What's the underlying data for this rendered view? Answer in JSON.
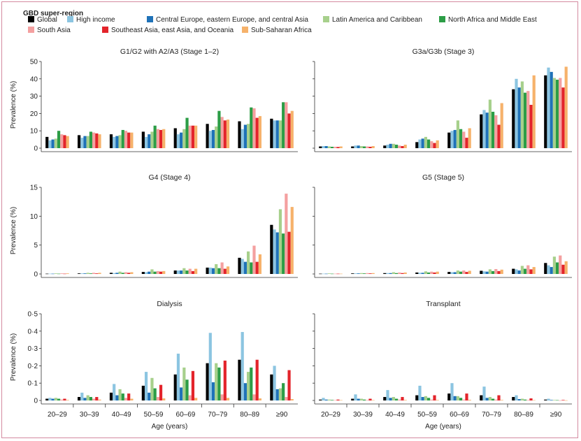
{
  "legend": {
    "title": "GBD super-region",
    "entries": [
      {
        "name": "Global",
        "color": "#000000"
      },
      {
        "name": "High income",
        "color": "#8cc5e1"
      },
      {
        "name": "Central Europe, eastern Europe, and central Asia",
        "color": "#1f72b8"
      },
      {
        "name": "Latin America and Caribbean",
        "color": "#a7d08c"
      },
      {
        "name": "North Africa and Middle East",
        "color": "#2c9d46"
      },
      {
        "name": "South Asia",
        "color": "#f4a0a0"
      },
      {
        "name": "Southeast Asia, east Asia, and Oceania",
        "color": "#e3242b"
      },
      {
        "name": "Sub-Saharan Africa",
        "color": "#f6b26b"
      }
    ]
  },
  "ylabel": "Prevalence (%)",
  "xlabel": "Age (years)",
  "chart_data": [
    {
      "type": "bar",
      "title": "G1/G2 with A2/A3 (Stage 1–2)",
      "categories": [
        "20–29",
        "30–39",
        "40–49",
        "50–59",
        "60–69",
        "70–79",
        "80–89",
        "≥90"
      ],
      "ylim": [
        0,
        50
      ],
      "yticks": [
        0,
        10,
        20,
        30,
        40,
        50
      ],
      "ytick_labels": [
        "0",
        "10",
        "20",
        "30",
        "40",
        "50"
      ],
      "series": [
        {
          "name": "Global",
          "values": [
            6.5,
            7.5,
            8,
            9.5,
            11.5,
            14,
            15.5,
            17
          ]
        },
        {
          "name": "High income",
          "values": [
            4.5,
            6,
            6.5,
            6.5,
            8,
            10,
            11,
            16
          ]
        },
        {
          "name": "Central Europe, eastern Europe, and central Asia",
          "values": [
            5,
            7,
            7,
            8,
            9,
            10.5,
            13.5,
            16
          ]
        },
        {
          "name": "Latin America and Caribbean",
          "values": [
            5.5,
            7,
            7.5,
            9.5,
            11,
            12.5,
            14,
            16
          ]
        },
        {
          "name": "North Africa and Middle East",
          "values": [
            10,
            9.5,
            10.5,
            13,
            17.5,
            21.5,
            23.5,
            26.5
          ]
        },
        {
          "name": "South Asia",
          "values": [
            8,
            9,
            10,
            11,
            13,
            18,
            23,
            26.5
          ]
        },
        {
          "name": "Southeast Asia, east Asia, and Oceania",
          "values": [
            7.5,
            8.5,
            9,
            10.5,
            13,
            16,
            17.5,
            20
          ]
        },
        {
          "name": "Sub-Saharan Africa",
          "values": [
            7,
            8,
            9,
            11,
            13,
            16.5,
            18.5,
            21.5
          ]
        }
      ]
    },
    {
      "type": "bar",
      "title": "G3a/G3b (Stage 3)",
      "categories": [
        "20–29",
        "30–39",
        "40–49",
        "50–59",
        "60–69",
        "70–79",
        "80–89",
        "≥90"
      ],
      "ylim": [
        0,
        50
      ],
      "yticks": [
        0,
        10,
        20,
        30,
        40,
        50
      ],
      "ytick_labels": [
        "0",
        "10",
        "20",
        "30",
        "40",
        "50"
      ],
      "series": [
        {
          "name": "Global",
          "values": [
            1,
            1,
            1.5,
            3.5,
            9,
            19.5,
            34,
            42
          ]
        },
        {
          "name": "High income",
          "values": [
            1.2,
            1.5,
            2,
            5,
            10,
            22,
            40,
            46.5
          ]
        },
        {
          "name": "Central Europe, eastern Europe, and central Asia",
          "values": [
            1.2,
            1.5,
            2.5,
            5.5,
            10.5,
            20.5,
            35,
            44
          ]
        },
        {
          "name": "Latin America and Caribbean",
          "values": [
            1,
            1.2,
            2.5,
            6.5,
            16,
            28,
            38.5,
            40.5
          ]
        },
        {
          "name": "North Africa and Middle East",
          "values": [
            0.8,
            1,
            2,
            5,
            11,
            21,
            32,
            39.5
          ]
        },
        {
          "name": "South Asia",
          "values": [
            0.8,
            1,
            1.5,
            4,
            9.5,
            19,
            33,
            40.5
          ]
        },
        {
          "name": "Southeast Asia, east Asia, and Oceania",
          "values": [
            0.7,
            0.8,
            1.2,
            3,
            6,
            13.5,
            25,
            35
          ]
        },
        {
          "name": "Sub-Saharan Africa",
          "values": [
            1,
            1.2,
            2,
            4.5,
            11.5,
            26,
            42,
            47
          ]
        }
      ]
    },
    {
      "type": "bar",
      "title": "G4 (Stage 4)",
      "categories": [
        "20–29",
        "30–39",
        "40–49",
        "50–59",
        "60–69",
        "70–79",
        "80–89",
        "≥90"
      ],
      "ylim": [
        0,
        15
      ],
      "yticks": [
        0,
        5,
        10,
        15
      ],
      "ytick_labels": [
        "0",
        "5",
        "10",
        "15"
      ],
      "series": [
        {
          "name": "Global",
          "values": [
            0.05,
            0.1,
            0.2,
            0.35,
            0.6,
            1.1,
            2.8,
            8.5
          ]
        },
        {
          "name": "High income",
          "values": [
            0.05,
            0.1,
            0.15,
            0.3,
            0.6,
            1.1,
            2.6,
            7.7
          ]
        },
        {
          "name": "Central Europe, eastern Europe, and central Asia",
          "values": [
            0.05,
            0.1,
            0.2,
            0.4,
            0.6,
            1.0,
            2.1,
            7.2
          ]
        },
        {
          "name": "Latin America and Caribbean",
          "values": [
            0.1,
            0.2,
            0.4,
            0.8,
            1.0,
            1.7,
            3.9,
            11.2
          ]
        },
        {
          "name": "North Africa and Middle East",
          "values": [
            0.05,
            0.1,
            0.2,
            0.4,
            0.6,
            1.0,
            2.0,
            7.0
          ]
        },
        {
          "name": "South Asia",
          "values": [
            0.1,
            0.2,
            0.3,
            0.5,
            0.9,
            2.0,
            4.9,
            13.9
          ]
        },
        {
          "name": "Southeast Asia, east Asia, and Oceania",
          "values": [
            0.05,
            0.1,
            0.2,
            0.4,
            0.5,
            0.9,
            2.1,
            7.3
          ]
        },
        {
          "name": "Sub-Saharan Africa",
          "values": [
            0.1,
            0.2,
            0.3,
            0.5,
            0.9,
            1.3,
            3.4,
            11.6
          ]
        }
      ]
    },
    {
      "type": "bar",
      "title": "G5 (Stage 5)",
      "categories": [
        "20–29",
        "30–39",
        "40–49",
        "50–59",
        "60–69",
        "70–79",
        "80–89",
        "≥90"
      ],
      "ylim": [
        0,
        15
      ],
      "yticks": [
        0,
        5,
        10,
        15
      ],
      "ytick_labels": [
        "0",
        "5",
        "10",
        "15"
      ],
      "series": [
        {
          "name": "Global",
          "values": [
            0.05,
            0.1,
            0.15,
            0.25,
            0.35,
            0.55,
            0.9,
            1.9
          ]
        },
        {
          "name": "High income",
          "values": [
            0.05,
            0.1,
            0.15,
            0.2,
            0.3,
            0.45,
            0.8,
            1.5
          ]
        },
        {
          "name": "Central Europe, eastern Europe, and central Asia",
          "values": [
            0.05,
            0.1,
            0.15,
            0.2,
            0.3,
            0.4,
            0.6,
            1.2
          ]
        },
        {
          "name": "Latin America and Caribbean",
          "values": [
            0.1,
            0.15,
            0.3,
            0.45,
            0.6,
            0.8,
            1.4,
            3.0
          ]
        },
        {
          "name": "North Africa and Middle East",
          "values": [
            0.05,
            0.1,
            0.15,
            0.25,
            0.4,
            0.5,
            0.9,
            2.0
          ]
        },
        {
          "name": "South Asia",
          "values": [
            0.05,
            0.15,
            0.25,
            0.4,
            0.6,
            0.85,
            1.5,
            3.2
          ]
        },
        {
          "name": "Southeast Asia, east Asia, and Oceania",
          "values": [
            0.05,
            0.1,
            0.15,
            0.25,
            0.35,
            0.5,
            0.8,
            1.6
          ]
        },
        {
          "name": "Sub-Saharan Africa",
          "values": [
            0.05,
            0.15,
            0.25,
            0.4,
            0.55,
            0.75,
            1.2,
            2.2
          ]
        }
      ]
    },
    {
      "type": "bar",
      "title": "Dialysis",
      "categories": [
        "20–29",
        "30–39",
        "40–49",
        "50–59",
        "60–69",
        "70–79",
        "80–89",
        "≥90"
      ],
      "ylim": [
        0,
        0.5
      ],
      "yticks": [
        0,
        0.1,
        0.2,
        0.3,
        0.4,
        0.5
      ],
      "ytick_labels": [
        "0",
        "0·1",
        "0·2",
        "0·3",
        "0·4",
        "0·5"
      ],
      "series": [
        {
          "name": "Global",
          "values": [
            0.01,
            0.02,
            0.045,
            0.085,
            0.15,
            0.215,
            0.235,
            0.15
          ]
        },
        {
          "name": "High income",
          "values": [
            0.015,
            0.045,
            0.095,
            0.165,
            0.27,
            0.39,
            0.395,
            0.2
          ]
        },
        {
          "name": "Central Europe, eastern Europe, and central Asia",
          "values": [
            0.01,
            0.015,
            0.03,
            0.045,
            0.075,
            0.105,
            0.1,
            0.065
          ]
        },
        {
          "name": "Latin America and Caribbean",
          "values": [
            0.015,
            0.03,
            0.065,
            0.13,
            0.19,
            0.215,
            0.165,
            0.07
          ]
        },
        {
          "name": "North Africa and Middle East",
          "values": [
            0.01,
            0.02,
            0.04,
            0.07,
            0.12,
            0.19,
            0.19,
            0.1
          ]
        },
        {
          "name": "South Asia",
          "values": [
            0.005,
            0.01,
            0.015,
            0.02,
            0.03,
            0.035,
            0.035,
            0.02
          ]
        },
        {
          "name": "Southeast Asia, east Asia, and Oceania",
          "values": [
            0.01,
            0.02,
            0.04,
            0.09,
            0.17,
            0.23,
            0.235,
            0.175
          ]
        },
        {
          "name": "Sub-Saharan Africa",
          "values": [
            0.003,
            0.005,
            0.01,
            0.012,
            0.015,
            0.015,
            0.012,
            0.008
          ]
        }
      ]
    },
    {
      "type": "bar",
      "title": "Transplant",
      "categories": [
        "20–29",
        "30–39",
        "40–49",
        "50–59",
        "60–69",
        "70–79",
        "80–89",
        "≥90"
      ],
      "ylim": [
        0,
        0.5
      ],
      "yticks": [
        0,
        0.1,
        0.2,
        0.3,
        0.4,
        0.5
      ],
      "ytick_labels": [
        "0",
        "0·1",
        "0·2",
        "0·3",
        "0·4",
        "0·5"
      ],
      "series": [
        {
          "name": "Global",
          "values": [
            0.005,
            0.01,
            0.02,
            0.03,
            0.04,
            0.03,
            0.02,
            0.005
          ]
        },
        {
          "name": "High income",
          "values": [
            0.015,
            0.035,
            0.06,
            0.085,
            0.1,
            0.08,
            0.03,
            0.01
          ]
        },
        {
          "name": "Central Europe, eastern Europe, and central Asia",
          "values": [
            0.005,
            0.01,
            0.015,
            0.02,
            0.025,
            0.015,
            0.008,
            0.003
          ]
        },
        {
          "name": "Latin America and Caribbean",
          "values": [
            0.005,
            0.01,
            0.02,
            0.025,
            0.025,
            0.02,
            0.01,
            0.003
          ]
        },
        {
          "name": "North Africa and Middle East",
          "values": [
            0.003,
            0.005,
            0.01,
            0.015,
            0.015,
            0.01,
            0.005,
            0.002
          ]
        },
        {
          "name": "South Asia",
          "values": [
            0.002,
            0.003,
            0.005,
            0.005,
            0.005,
            0.005,
            0.003,
            0.001
          ]
        },
        {
          "name": "Southeast Asia, east Asia, and Oceania",
          "values": [
            0.005,
            0.01,
            0.02,
            0.03,
            0.04,
            0.03,
            0.012,
            0.003
          ]
        },
        {
          "name": "Sub-Saharan Africa",
          "values": [
            0.002,
            0.002,
            0.003,
            0.003,
            0.004,
            0.003,
            0.002,
            0.001
          ]
        }
      ]
    }
  ]
}
